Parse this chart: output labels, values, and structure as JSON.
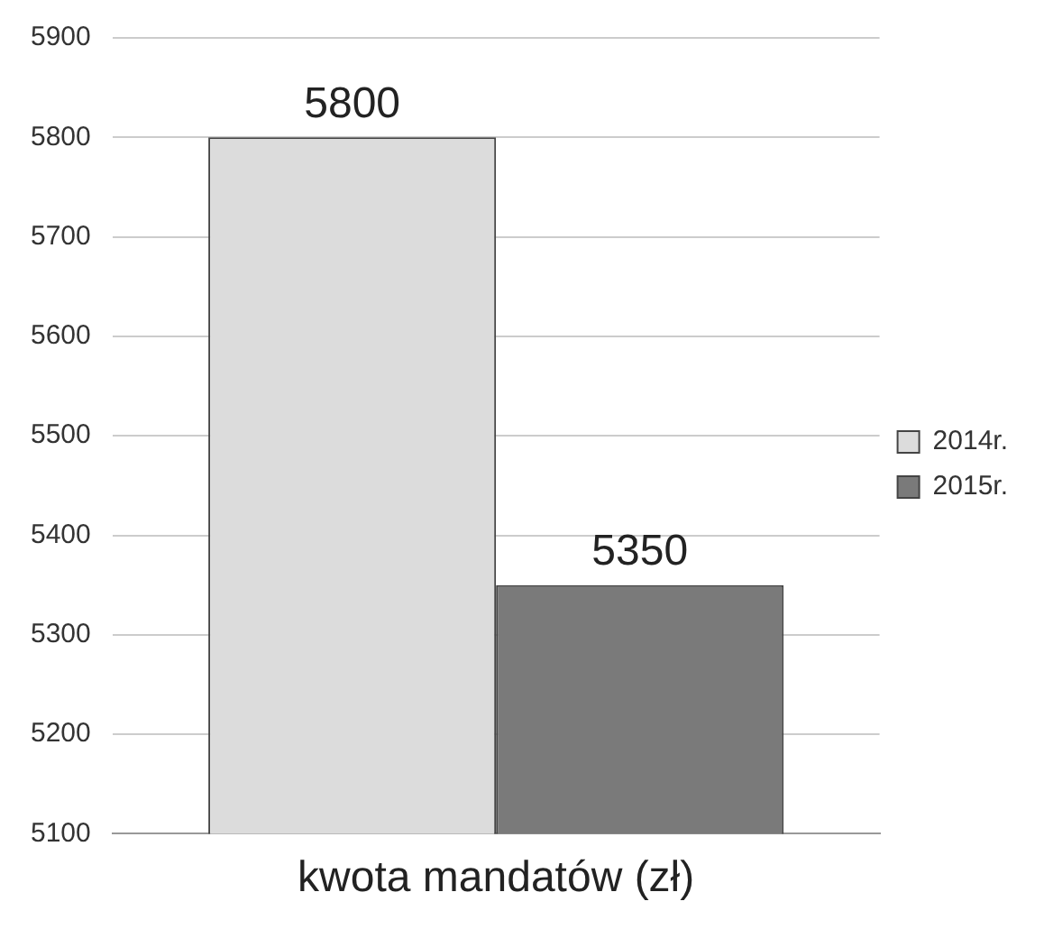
{
  "chart_data": {
    "type": "bar",
    "categories": [
      "kwota mandatów (zł)"
    ],
    "series": [
      {
        "name": "2014r.",
        "color": "#dcdcdc",
        "values": [
          5800
        ]
      },
      {
        "name": "2015r.",
        "color": "#7a7a7a",
        "values": [
          5350
        ]
      }
    ],
    "ylim": [
      5100,
      5900
    ],
    "yticks": [
      5100,
      5200,
      5300,
      5400,
      5500,
      5600,
      5700,
      5800,
      5900
    ],
    "grid": "y",
    "legend": "right",
    "data_labels": true
  }
}
